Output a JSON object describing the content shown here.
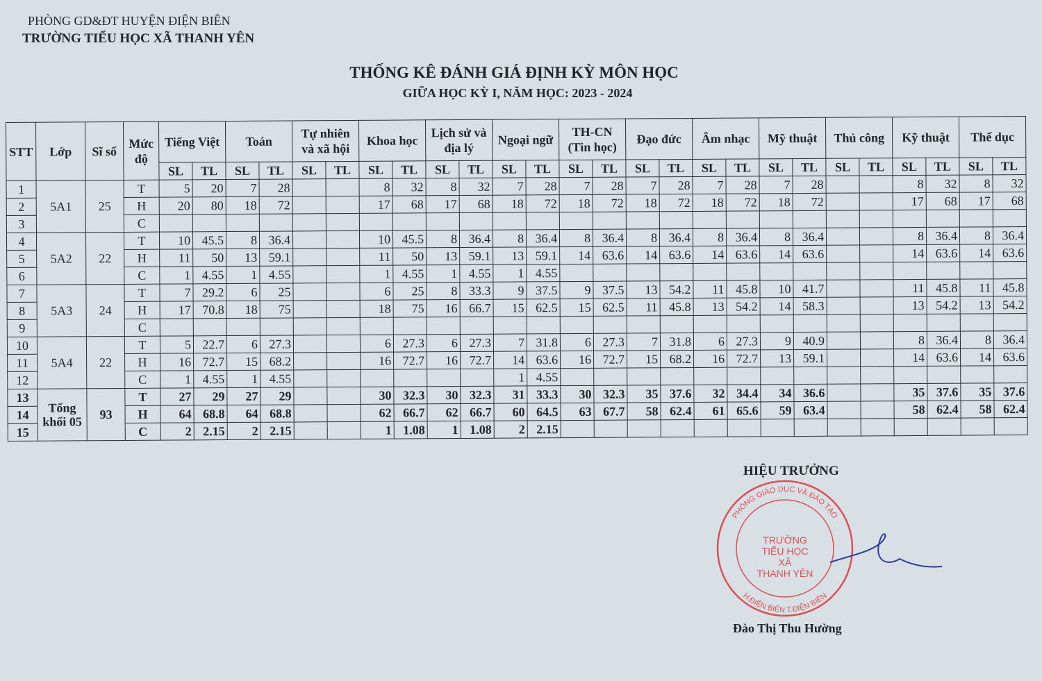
{
  "header": {
    "department": "PHÒNG GD&ĐT HUYỆN ĐIỆN BIÊN",
    "school": "TRƯỜNG TIỂU HỌC XÃ THANH YÊN",
    "title": "THỐNG KÊ ĐÁNH GIÁ ĐỊNH KỲ MÔN HỌC",
    "subtitle": "GIỮA HỌC KỲ I, NĂM HỌC: 2023 - 2024"
  },
  "table": {
    "fixed_headers": [
      "STT",
      "Lớp",
      "Sĩ số",
      "Mức độ"
    ],
    "subjects": [
      "Tiếng Việt",
      "Toán",
      "Tự nhiên và xã hội",
      "Khoa học",
      "Lịch sử và địa lý",
      "Ngoại ngữ",
      "TH-CN (Tin học)",
      "Đạo đức",
      "Âm nhạc",
      "Mỹ thuật",
      "Thủ công",
      "Kỹ thuật",
      "Thể dục"
    ],
    "sub_headers": [
      "SL",
      "TL"
    ],
    "groups": [
      {
        "class": "5A1",
        "size": "25"
      },
      {
        "class": "5A2",
        "size": "22"
      },
      {
        "class": "5A3",
        "size": "24"
      },
      {
        "class": "5A4",
        "size": "22"
      },
      {
        "class": "Tổng khối 05",
        "size": "93"
      }
    ],
    "rows": [
      {
        "stt": "1",
        "level": "T",
        "values": [
          "5",
          "20",
          "7",
          "28",
          "",
          "",
          "8",
          "32",
          "8",
          "32",
          "7",
          "28",
          "7",
          "28",
          "7",
          "28",
          "7",
          "28",
          "7",
          "28",
          "",
          "",
          "8",
          "32",
          "8",
          "32"
        ]
      },
      {
        "stt": "2",
        "level": "H",
        "values": [
          "20",
          "80",
          "18",
          "72",
          "",
          "",
          "17",
          "68",
          "17",
          "68",
          "18",
          "72",
          "18",
          "72",
          "18",
          "72",
          "18",
          "72",
          "18",
          "72",
          "",
          "",
          "17",
          "68",
          "17",
          "68"
        ]
      },
      {
        "stt": "3",
        "level": "C",
        "values": [
          "",
          "",
          "",
          "",
          "",
          "",
          "",
          "",
          "",
          "",
          "",
          "",
          "",
          "",
          "",
          "",
          "",
          "",
          "",
          "",
          "",
          "",
          "",
          "",
          "",
          ""
        ]
      },
      {
        "stt": "4",
        "level": "T",
        "values": [
          "10",
          "45.5",
          "8",
          "36.4",
          "",
          "",
          "10",
          "45.5",
          "8",
          "36.4",
          "8",
          "36.4",
          "8",
          "36.4",
          "8",
          "36.4",
          "8",
          "36.4",
          "8",
          "36.4",
          "",
          "",
          "8",
          "36.4",
          "8",
          "36.4"
        ]
      },
      {
        "stt": "5",
        "level": "H",
        "values": [
          "11",
          "50",
          "13",
          "59.1",
          "",
          "",
          "11",
          "50",
          "13",
          "59.1",
          "13",
          "59.1",
          "14",
          "63.6",
          "14",
          "63.6",
          "14",
          "63.6",
          "14",
          "63.6",
          "",
          "",
          "14",
          "63.6",
          "14",
          "63.6"
        ]
      },
      {
        "stt": "6",
        "level": "C",
        "values": [
          "1",
          "4.55",
          "1",
          "4.55",
          "",
          "",
          "1",
          "4.55",
          "1",
          "4.55",
          "1",
          "4.55",
          "",
          "",
          "",
          "",
          "",
          "",
          "",
          "",
          "",
          "",
          "",
          "",
          "",
          ""
        ]
      },
      {
        "stt": "7",
        "level": "T",
        "values": [
          "7",
          "29.2",
          "6",
          "25",
          "",
          "",
          "6",
          "25",
          "8",
          "33.3",
          "9",
          "37.5",
          "9",
          "37.5",
          "13",
          "54.2",
          "11",
          "45.8",
          "10",
          "41.7",
          "",
          "",
          "11",
          "45.8",
          "11",
          "45.8"
        ]
      },
      {
        "stt": "8",
        "level": "H",
        "values": [
          "17",
          "70.8",
          "18",
          "75",
          "",
          "",
          "18",
          "75",
          "16",
          "66.7",
          "15",
          "62.5",
          "15",
          "62.5",
          "11",
          "45.8",
          "13",
          "54.2",
          "14",
          "58.3",
          "",
          "",
          "13",
          "54.2",
          "13",
          "54.2"
        ]
      },
      {
        "stt": "9",
        "level": "C",
        "values": [
          "",
          "",
          "",
          "",
          "",
          "",
          "",
          "",
          "",
          "",
          "",
          "",
          "",
          "",
          "",
          "",
          "",
          "",
          "",
          "",
          "",
          "",
          "",
          "",
          "",
          ""
        ]
      },
      {
        "stt": "10",
        "level": "T",
        "values": [
          "5",
          "22.7",
          "6",
          "27.3",
          "",
          "",
          "6",
          "27.3",
          "6",
          "27.3",
          "7",
          "31.8",
          "6",
          "27.3",
          "7",
          "31.8",
          "6",
          "27.3",
          "9",
          "40.9",
          "",
          "",
          "8",
          "36.4",
          "8",
          "36.4"
        ]
      },
      {
        "stt": "11",
        "level": "H",
        "values": [
          "16",
          "72.7",
          "15",
          "68.2",
          "",
          "",
          "16",
          "72.7",
          "16",
          "72.7",
          "14",
          "63.6",
          "16",
          "72.7",
          "15",
          "68.2",
          "16",
          "72.7",
          "13",
          "59.1",
          "",
          "",
          "14",
          "63.6",
          "14",
          "63.6"
        ]
      },
      {
        "stt": "12",
        "level": "C",
        "values": [
          "1",
          "4.55",
          "1",
          "4.55",
          "",
          "",
          "",
          "",
          "",
          "",
          "1",
          "4.55",
          "",
          "",
          "",
          "",
          "",
          "",
          "",
          "",
          "",
          "",
          "",
          "",
          "",
          ""
        ]
      },
      {
        "stt": "13",
        "level": "T",
        "values": [
          "27",
          "29",
          "27",
          "29",
          "",
          "",
          "30",
          "32.3",
          "30",
          "32.3",
          "31",
          "33.3",
          "30",
          "32.3",
          "35",
          "37.6",
          "32",
          "34.4",
          "34",
          "36.6",
          "",
          "",
          "35",
          "37.6",
          "35",
          "37.6"
        ]
      },
      {
        "stt": "14",
        "level": "H",
        "values": [
          "64",
          "68.8",
          "64",
          "68.8",
          "",
          "",
          "62",
          "66.7",
          "62",
          "66.7",
          "60",
          "64.5",
          "63",
          "67.7",
          "58",
          "62.4",
          "61",
          "65.6",
          "59",
          "63.4",
          "",
          "",
          "58",
          "62.4",
          "58",
          "62.4"
        ]
      },
      {
        "stt": "15",
        "level": "C",
        "values": [
          "2",
          "2.15",
          "2",
          "2.15",
          "",
          "",
          "1",
          "1.08",
          "1",
          "1.08",
          "2",
          "2.15",
          "",
          "",
          "",
          "",
          "",
          "",
          "",
          "",
          "",
          "",
          "",
          "",
          "",
          ""
        ]
      }
    ]
  },
  "signature": {
    "title": "HIỆU TRƯỞNG",
    "name": "Đào Thị Thu Hường",
    "stamp_ring": "PHÒNG GIÁO DỤC VÀ ĐÀO TẠO H.ĐIỆN BIÊN T.ĐIỆN BIÊN",
    "stamp_center": [
      "TRƯỜNG",
      "TIỂU HỌC",
      "XÃ",
      "THANH YÊN"
    ],
    "stamp_color": "#d9383a"
  }
}
